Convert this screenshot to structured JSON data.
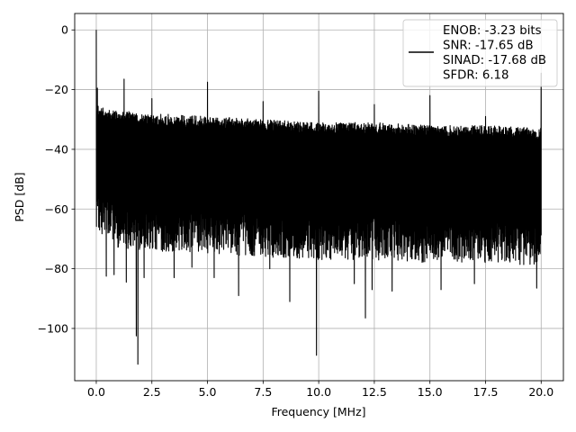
{
  "chart_data": {
    "type": "line",
    "title": "",
    "xlabel": "Frequency [MHz]",
    "ylabel": "PSD [dB]",
    "xlim": [
      -0.97,
      21.0
    ],
    "ylim": [
      -117.5,
      5.5
    ],
    "x_ticks": [
      0.0,
      2.5,
      5.0,
      7.5,
      10.0,
      12.5,
      15.0,
      17.5,
      20.0
    ],
    "x_tick_labels": [
      "0.0",
      "2.5",
      "5.0",
      "7.5",
      "10.0",
      "12.5",
      "15.0",
      "17.5",
      "20.0"
    ],
    "y_ticks": [
      0,
      -20,
      -40,
      -60,
      -80,
      -100
    ],
    "y_tick_labels": [
      "0",
      "−20",
      "−40",
      "−60",
      "−80",
      "−100"
    ],
    "grid": true,
    "legend_position": "top-right",
    "series": [
      {
        "name": "ENOB: -3.23 bits\nSNR: -17.65 dB\nSINAD: -17.68 dB\nSFDR: 6.18",
        "color": "#000000",
        "x_range": [
          0.0,
          20.0
        ],
        "noise_envelope": {
          "x": [
            0.0,
            0.2,
            1.0,
            2.5,
            5.0,
            7.5,
            10.0,
            12.5,
            15.0,
            17.5,
            20.0
          ],
          "upper": [
            -25,
            -26,
            -27,
            -28,
            -29,
            -30,
            -31,
            -31,
            -32,
            -32,
            -33
          ],
          "lower": [
            -66,
            -68,
            -73,
            -74,
            -75,
            -76,
            -77,
            -77,
            -78,
            -78,
            -79
          ]
        },
        "peaks": [
          {
            "x": 0.0,
            "y": 0.0
          },
          {
            "x": 0.05,
            "y": -19.5
          },
          {
            "x": 1.25,
            "y": -16.5
          },
          {
            "x": 2.5,
            "y": -23.0
          },
          {
            "x": 5.0,
            "y": -17.5
          },
          {
            "x": 7.5,
            "y": -24.0
          },
          {
            "x": 10.0,
            "y": -20.5
          },
          {
            "x": 12.5,
            "y": -25.0
          },
          {
            "x": 15.0,
            "y": -22.0
          },
          {
            "x": 17.5,
            "y": -29.0
          },
          {
            "x": 20.0,
            "y": -14.5
          }
        ],
        "dips": [
          {
            "x": 0.05,
            "y": -56.0
          },
          {
            "x": 0.15,
            "y": -67.0
          },
          {
            "x": 0.45,
            "y": -82.5
          },
          {
            "x": 0.8,
            "y": -82.0
          },
          {
            "x": 1.35,
            "y": -84.5
          },
          {
            "x": 1.8,
            "y": -102.5
          },
          {
            "x": 1.87,
            "y": -112.0
          },
          {
            "x": 2.15,
            "y": -83.0
          },
          {
            "x": 3.5,
            "y": -83.0
          },
          {
            "x": 4.3,
            "y": -79.5
          },
          {
            "x": 5.3,
            "y": -83.0
          },
          {
            "x": 6.4,
            "y": -89.0
          },
          {
            "x": 7.8,
            "y": -80.0
          },
          {
            "x": 8.7,
            "y": -91.0
          },
          {
            "x": 9.9,
            "y": -109.0
          },
          {
            "x": 11.6,
            "y": -85.0
          },
          {
            "x": 12.1,
            "y": -96.5
          },
          {
            "x": 12.4,
            "y": -87.0
          },
          {
            "x": 13.3,
            "y": -87.5
          },
          {
            "x": 15.5,
            "y": -87.0
          },
          {
            "x": 17.0,
            "y": -85.0
          },
          {
            "x": 19.8,
            "y": -86.5
          }
        ]
      }
    ]
  }
}
